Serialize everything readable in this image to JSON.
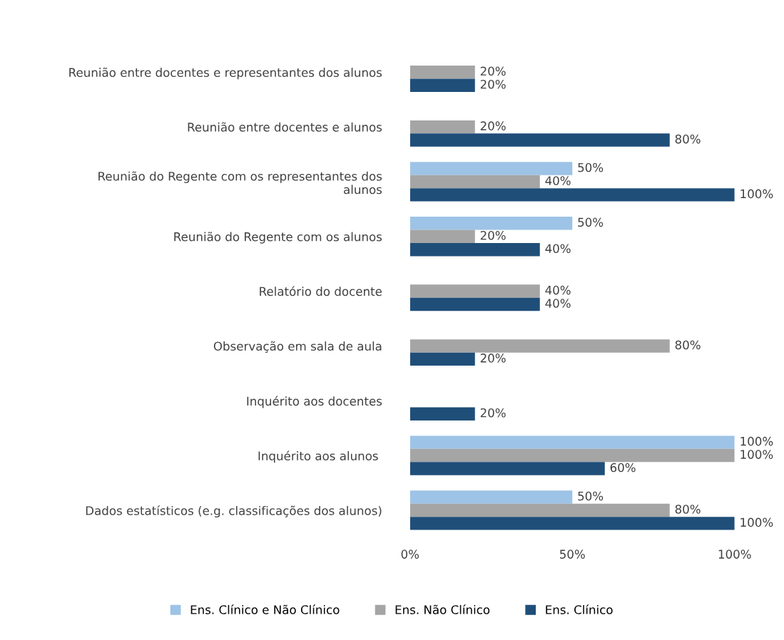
{
  "chart_data": {
    "type": "bar",
    "orientation": "horizontal",
    "categories": [
      "Reunião entre docentes e representantes dos alunos",
      "Reunião entre docentes e alunos",
      "Reunião do Regente com os representantes dos\nalunos",
      "Reunião do Regente com os alunos",
      "Relatório do docente",
      "Observação em sala de aula",
      "Inquérito aos docentes",
      "Inquérito aos alunos ",
      "Dados estatísticos (e.g. classificações dos alunos)"
    ],
    "series": [
      {
        "name": "Ens. Clínico e Não Clínico",
        "color": "#9dc3e6",
        "values": [
          null,
          null,
          50,
          50,
          null,
          null,
          null,
          100,
          50
        ],
        "value_labels": [
          null,
          null,
          "50%",
          "50%",
          null,
          null,
          null,
          "100%",
          "50%"
        ]
      },
      {
        "name": "Ens. Não Clínico",
        "color": "#a5a5a5",
        "values": [
          20,
          20,
          40,
          20,
          40,
          80,
          null,
          100,
          80
        ],
        "value_labels": [
          "20%",
          "20%",
          "40%",
          "20%",
          "40%",
          "80%",
          null,
          "100%",
          "80%"
        ]
      },
      {
        "name": "Ens. Clínico",
        "color": "#1f4e79",
        "values": [
          20,
          80,
          100,
          40,
          40,
          20,
          20,
          60,
          100
        ],
        "value_labels": [
          "20%",
          "80%",
          "100%",
          "40%",
          "40%",
          "20%",
          "20%",
          "60%",
          "100%"
        ]
      }
    ],
    "xlim": [
      0,
      100
    ],
    "xticks": [
      {
        "value": 0,
        "label": "0%"
      },
      {
        "value": 50,
        "label": "50%"
      },
      {
        "value": 100,
        "label": "100%"
      }
    ],
    "legend": "bottom",
    "grid": false
  }
}
